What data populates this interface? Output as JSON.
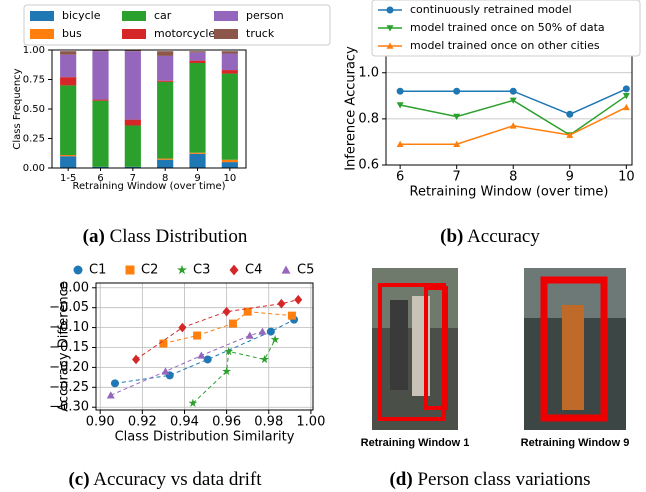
{
  "chart_data": [
    {
      "type": "stacked_bar",
      "ylabel": "Class Frequency",
      "xlabel": "Retraining Window (over time)",
      "categories": [
        "1-5",
        "6",
        "7",
        "8",
        "9",
        "10"
      ],
      "ylim": [
        0,
        1.0
      ],
      "yticks": [
        {
          "value": 0,
          "label": "0.00"
        },
        {
          "value": 0.25,
          "label": "0.25"
        },
        {
          "value": 0.5,
          "label": "0.50"
        },
        {
          "value": 0.75,
          "label": "0.75"
        },
        {
          "value": 1.0,
          "label": "1.00"
        }
      ],
      "series": [
        {
          "name": "bicycle",
          "color": "#1f77b4",
          "values": [
            0.1,
            0.01,
            0.01,
            0.07,
            0.12,
            0.05
          ]
        },
        {
          "name": "bus",
          "color": "#ff7f0e",
          "values": [
            0.01,
            0,
            0,
            0.01,
            0.01,
            0.02
          ]
        },
        {
          "name": "car",
          "color": "#2ca02c",
          "values": [
            0.59,
            0.56,
            0.35,
            0.65,
            0.76,
            0.73
          ]
        },
        {
          "name": "motorcycle",
          "color": "#d62728",
          "values": [
            0.07,
            0.01,
            0.05,
            0.01,
            0.02,
            0.03
          ]
        },
        {
          "name": "person",
          "color": "#9467bd",
          "values": [
            0.19,
            0.41,
            0.58,
            0.21,
            0.07,
            0.14
          ]
        },
        {
          "name": "truck",
          "color": "#8c564b",
          "values": [
            0.03,
            0.01,
            0.01,
            0.04,
            0.01,
            0.02
          ]
        }
      ],
      "grid": false
    },
    {
      "type": "line",
      "ylabel": "Inference Accuracy",
      "xlabel": "Retraining Window (over time)",
      "x": [
        6,
        7,
        8,
        9,
        10
      ],
      "xlim": [
        5.75,
        10.1
      ],
      "xticks": [
        6,
        7,
        8,
        9,
        10
      ],
      "ylim": [
        0.6,
        1.09
      ],
      "yticks": [
        0.6,
        0.8,
        {
          "value": 1.0,
          "label": "1.0"
        }
      ],
      "series": [
        {
          "name": "continuously retrained model",
          "color": "#1f77b4",
          "marker": "o",
          "values": [
            0.92,
            0.92,
            0.92,
            0.82,
            0.93
          ]
        },
        {
          "name": "model trained once on 50% of data",
          "color": "#2ca02c",
          "marker": "v",
          "values": [
            0.86,
            0.81,
            0.88,
            0.73,
            0.9
          ]
        },
        {
          "name": "model trained once on other cities",
          "color": "#ff7f0e",
          "marker": "^",
          "values": [
            0.69,
            0.69,
            0.77,
            0.73,
            0.85
          ]
        }
      ],
      "grid": "y"
    },
    {
      "type": "scatter",
      "ylabel": "Accuracy Difference",
      "xlabel": "Class Distribution Similarity",
      "xlim": [
        0.898,
        1.001
      ],
      "xticks": [
        {
          "value": 0.9,
          "label": "0.90"
        },
        {
          "value": 0.92,
          "label": "0.92"
        },
        {
          "value": 0.94,
          "label": "0.94"
        },
        {
          "value": 0.96,
          "label": "0.96"
        },
        {
          "value": 0.98,
          "label": "0.98"
        },
        {
          "value": 1.0,
          "label": "1.00"
        }
      ],
      "ylim": [
        -0.307,
        0.012
      ],
      "yticks": [
        {
          "value": 0,
          "label": "0.00"
        },
        {
          "value": -0.05,
          "label": "−0.05"
        },
        {
          "value": -0.1,
          "label": "−0.10"
        },
        {
          "value": -0.15,
          "label": "−0.15"
        },
        {
          "value": -0.2,
          "label": "−0.20"
        },
        {
          "value": -0.25,
          "label": "−0.25"
        },
        {
          "value": -0.3,
          "label": "−0.30"
        }
      ],
      "series": [
        {
          "name": "C1",
          "color": "#1f77b4",
          "marker": "o",
          "x": [
            0.907,
            0.933,
            0.951,
            0.981,
            0.992
          ],
          "y": [
            -0.24,
            -0.22,
            -0.18,
            -0.11,
            -0.08
          ]
        },
        {
          "name": "C2",
          "color": "#ff7f0e",
          "marker": "s",
          "x": [
            0.93,
            0.946,
            0.963,
            0.97,
            0.991
          ],
          "y": [
            -0.14,
            -0.12,
            -0.09,
            -0.06,
            -0.07
          ]
        },
        {
          "name": "C3",
          "color": "#2ca02c",
          "marker": "*",
          "x": [
            0.944,
            0.96,
            0.961,
            0.978,
            0.983
          ],
          "y": [
            -0.29,
            -0.21,
            -0.16,
            -0.18,
            -0.13
          ]
        },
        {
          "name": "C4",
          "color": "#d62728",
          "marker": "D",
          "x": [
            0.917,
            0.939,
            0.96,
            0.986,
            0.994
          ],
          "y": [
            -0.18,
            -0.1,
            -0.06,
            -0.04,
            -0.03
          ]
        },
        {
          "name": "C5",
          "color": "#9467bd",
          "marker": "^",
          "x": [
            0.905,
            0.931,
            0.948,
            0.971,
            0.977
          ],
          "y": [
            -0.27,
            -0.21,
            -0.17,
            -0.12,
            -0.11
          ]
        }
      ],
      "grid": true
    }
  ],
  "captions": [
    {
      "label": "(a)",
      "text": "Class Distribution"
    },
    {
      "label": "(b)",
      "text": "Accuracy"
    },
    {
      "label": "(c)",
      "text": "Accuracy vs data drift"
    },
    {
      "label": "(d)",
      "text": "Person class variations"
    }
  ],
  "photos": [
    {
      "label": "Retraining Window 1"
    },
    {
      "label": "Retraining Window 9"
    }
  ]
}
